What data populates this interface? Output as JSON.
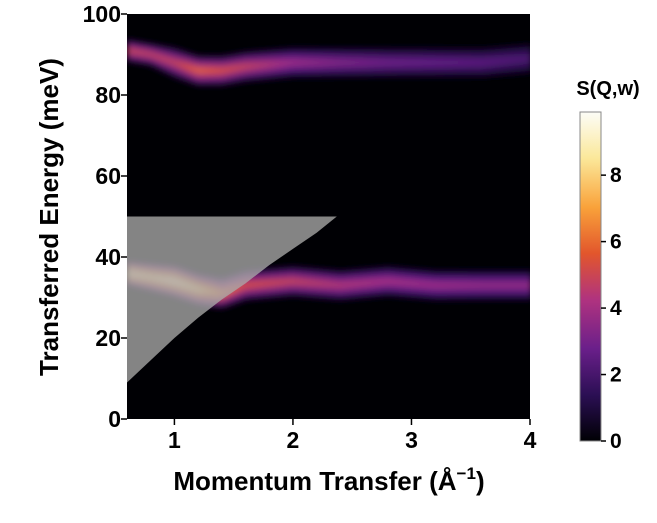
{
  "chart_data": {
    "type": "heatmap",
    "title": "",
    "xlabel": "Momentum Transfer (Å",
    "xlabel_exp": "−1",
    "xlabel_close": ")",
    "ylabel": "Transferred Energy (meV)",
    "xlim": [
      0.6,
      4.0
    ],
    "ylim": [
      0,
      100
    ],
    "xticks": [
      1,
      2,
      3,
      4
    ],
    "yticks": [
      0,
      20,
      40,
      60,
      80,
      100
    ],
    "grid": false,
    "colormap": [
      "#000004",
      "#2b0f54",
      "#6a1f8a",
      "#b0337f",
      "#e2562c",
      "#f9a23a",
      "#fbe89a",
      "#fcfdf7"
    ],
    "colorbar": {
      "label": "S(Q,w)",
      "range": [
        0,
        9.9
      ],
      "ticks": [
        0,
        2,
        4,
        6,
        8
      ]
    },
    "bands": [
      {
        "name": "",
        "energy_center_meV": [
          91,
          88,
          86,
          87,
          89,
          89,
          89,
          89,
          89,
          89,
          89
        ],
        "energy_center_q": [
          0.6,
          0.9,
          1.2,
          1.5,
          2.0,
          2.5,
          3.0,
          3.5,
          4.0,
          4.0,
          4.0
        ],
        "q": [
          0.6,
          0.8,
          1.0,
          1.2,
          1.4,
          1.6,
          2.0,
          2.4,
          2.8,
          3.2,
          3.6,
          4.0
        ],
        "center_meV": [
          91,
          90,
          88,
          86,
          86,
          87,
          88,
          88,
          88,
          88,
          88,
          89
        ],
        "width_meV": [
          3,
          3,
          4,
          4,
          4,
          4,
          4,
          4,
          4,
          4,
          4,
          4
        ],
        "intensity": [
          5.2,
          5.0,
          5.0,
          6.0,
          5.5,
          5.0,
          4.0,
          3.4,
          3.0,
          2.8,
          2.6,
          2.3
        ]
      },
      {
        "name": "",
        "q": [
          0.6,
          0.8,
          1.0,
          1.2,
          1.4,
          1.6,
          2.0,
          2.4,
          2.8,
          3.2,
          3.6,
          4.0
        ],
        "center_meV": [
          36,
          35,
          34,
          32,
          31,
          33,
          34,
          33,
          34,
          33,
          33,
          33
        ],
        "width_meV": [
          3,
          3.5,
          4,
          4,
          4,
          4,
          4,
          4,
          4,
          4,
          4,
          4
        ],
        "intensity": [
          9.5,
          9.0,
          9.5,
          8.5,
          6.5,
          5.5,
          5.0,
          4.5,
          4.2,
          4.0,
          3.8,
          3.8
        ]
      }
    ],
    "kinematic_mask": {
      "description_visible": false,
      "e_max_meV": 50,
      "boundary_q": [
        0.6,
        0.8,
        1.0,
        1.2,
        1.4,
        1.6,
        1.8,
        2.0,
        2.2,
        2.37
      ],
      "boundary_meV": [
        9,
        14.5,
        20,
        25,
        29.5,
        33.5,
        38,
        42,
        46,
        50
      ],
      "color": "#a9a9a9"
    }
  }
}
